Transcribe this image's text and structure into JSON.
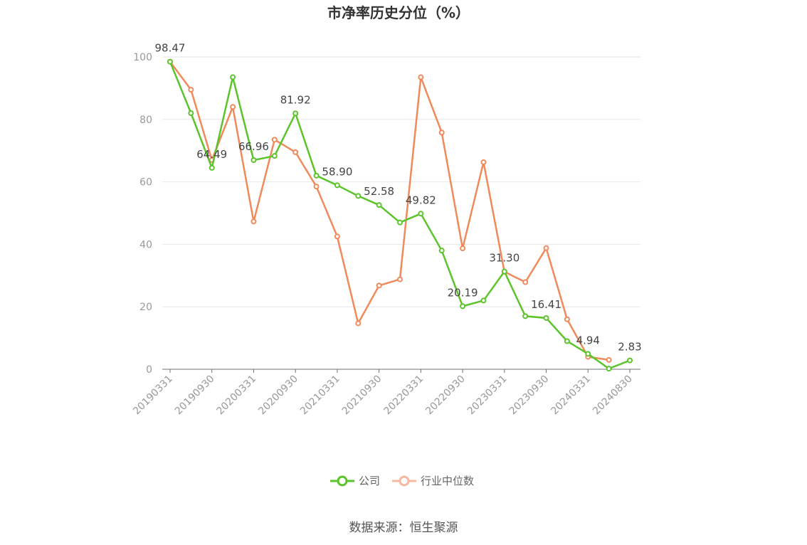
{
  "chart_data": {
    "type": "line",
    "title": "市净率历史分位（%）",
    "source": "数据来源：恒生聚源",
    "ylim": [
      0,
      100
    ],
    "yticks": [
      "0",
      "20",
      "40",
      "60",
      "80",
      "100"
    ],
    "xticks": [
      "20190331",
      "20190930",
      "20200331",
      "20200930",
      "20210331",
      "20210930",
      "20220331",
      "20220930",
      "20230331",
      "20230930",
      "20240331",
      "20240830"
    ],
    "grid": true,
    "legend_position": "bottom",
    "x": [
      "20190331",
      "20190630",
      "20190930",
      "20191231",
      "20200331",
      "20200630",
      "20200930",
      "20201231",
      "20210331",
      "20210630",
      "20210930",
      "20211231",
      "20220331",
      "20220630",
      "20220930",
      "20221231",
      "20230331",
      "20230630",
      "20230930",
      "20231231",
      "20240331",
      "20240630",
      "20240830"
    ],
    "series": [
      {
        "name": "公司",
        "color": "#5cc42b",
        "values": [
          98.47,
          82,
          64.49,
          93.5,
          66.96,
          68.3,
          81.92,
          62,
          58.9,
          55.5,
          52.58,
          47,
          49.82,
          38,
          20.19,
          22,
          31.3,
          17,
          16.41,
          9,
          4.94,
          0.2,
          2.83
        ],
        "labels": {
          "0": "98.47",
          "2": "64.49",
          "4": "66.96",
          "6": "81.92",
          "8": "58.90",
          "10": "52.58",
          "12": "49.82",
          "14": "20.19",
          "16": "31.30",
          "18": "16.41",
          "20": "4.94",
          "22": "2.83"
        }
      },
      {
        "name": "行业中位数",
        "color": "#f08a5b",
        "legend_color": "#f7b8a0",
        "values": [
          98.47,
          89.5,
          67,
          84,
          47.3,
          73.5,
          69.5,
          58.5,
          42.5,
          14.7,
          26.8,
          28.8,
          93.5,
          75.8,
          38.7,
          66.3,
          31.2,
          27.9,
          38.8,
          16,
          4,
          3,
          null
        ]
      }
    ]
  }
}
